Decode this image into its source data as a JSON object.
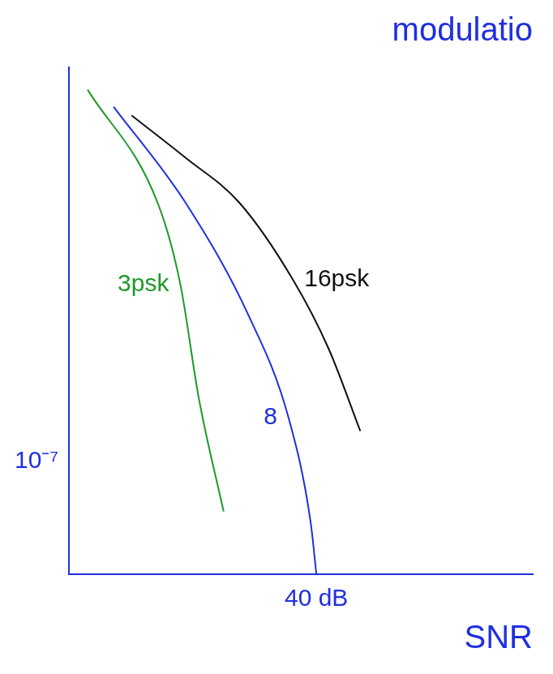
{
  "chart_data": {
    "type": "line",
    "title": "modulatio",
    "x_label": "SNR",
    "log": "y",
    "grid": false,
    "xlim": [
      0,
      75
    ],
    "xticks": [
      {
        "value": 40,
        "label": "40 dB"
      }
    ],
    "ylim": [
      1e-09,
      1
    ],
    "yticks": [
      {
        "value": 1e-07,
        "label": "10⁻⁷"
      }
    ],
    "series": [
      {
        "name": "3psk",
        "color": "#1f9a2a",
        "marker": "none",
        "line_style": "solid",
        "x": [
          3,
          14.5,
          18,
          21,
          25
        ],
        "values": [
          0.4,
          0.0035,
          0.00014,
          1.3e-06,
          1.3e-08
        ]
      },
      {
        "name": "8",
        "color": "#1f2fe0",
        "marker": "none",
        "line_style": "solid",
        "x": [
          7.2,
          18.8,
          29,
          35.5,
          39.1,
          40
        ],
        "values": [
          0.2,
          0.004,
          4e-05,
          6e-07,
          8e-09,
          1e-09
        ]
      },
      {
        "name": "16psk",
        "color": "#111111",
        "marker": "none",
        "line_style": "solid",
        "x": [
          10.1,
          18.8,
          27.5,
          36.2,
          42,
          47.1
        ],
        "values": [
          0.14,
          0.025,
          0.004,
          0.00017,
          1e-05,
          3.5e-07
        ]
      }
    ]
  }
}
